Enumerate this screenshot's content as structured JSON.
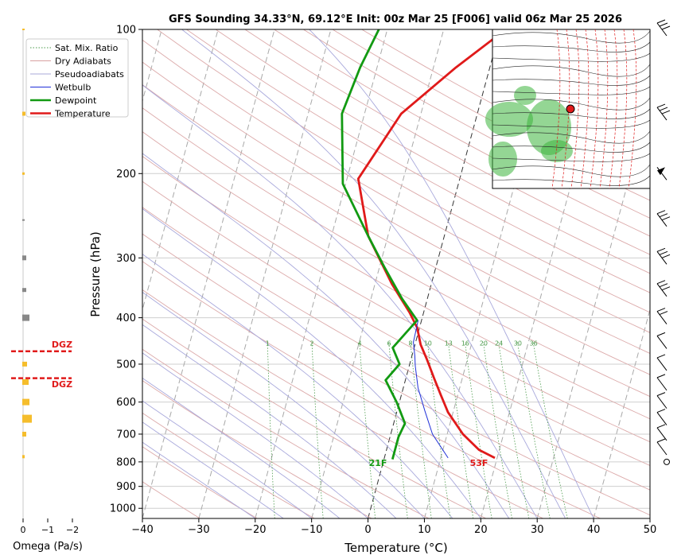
{
  "title": "GFS Sounding 34.33°N, 69.12°E Init: 00z Mar 25 [F006] valid 06z Mar 25 2026",
  "chart_data": {
    "type": "line",
    "title": "GFS Sounding 34.33°N, 69.12°E Init: 00z Mar 25 [F006] valid 06z Mar 25 2026",
    "xlabel": "Temperature (°C)",
    "ylabel": "Pressure (hPa)",
    "xlim": [
      -40,
      50
    ],
    "ylim": [
      1050,
      100
    ],
    "y_scale": "log",
    "x_ticks": [
      "−40",
      "−30",
      "−20",
      "−10",
      "0",
      "10",
      "20",
      "30",
      "40",
      "50"
    ],
    "x_tick_values": [
      -40,
      -30,
      -20,
      -10,
      0,
      10,
      20,
      30,
      40,
      50
    ],
    "y_ticks": [
      100,
      200,
      300,
      400,
      500,
      600,
      700,
      800,
      900,
      1000
    ],
    "grid": true,
    "legend_placement": "top-left",
    "legend": [
      {
        "name": "Sat. Mix. Ratio",
        "color": "#4a9a4a",
        "style": "dotted"
      },
      {
        "name": "Dry Adiabats",
        "color": "#d8a0a0",
        "style": "solid"
      },
      {
        "name": "Pseudoadiabats",
        "color": "#a8a8d8",
        "style": "solid"
      },
      {
        "name": "Wetbulb",
        "color": "#1f2fd8",
        "style": "solid"
      },
      {
        "name": "Dewpoint",
        "color": "#129a12",
        "style": "solid"
      },
      {
        "name": "Temperature",
        "color": "#e01a1a",
        "style": "solid"
      }
    ],
    "series": [
      {
        "name": "Temperature",
        "color": "#e01a1a",
        "points": [
          [
            19.6,
            785
          ],
          [
            16.4,
            755
          ],
          [
            12.8,
            700
          ],
          [
            9.1,
            630
          ],
          [
            7.0,
            580
          ],
          [
            5.0,
            535
          ],
          [
            2.9,
            490
          ],
          [
            1.0,
            455
          ],
          [
            -0.4,
            420
          ],
          [
            -2.5,
            390
          ],
          [
            -7.0,
            340
          ],
          [
            -13.5,
            270
          ],
          [
            -18.0,
            205
          ],
          [
            -13.5,
            150
          ],
          [
            -6.0,
            120
          ],
          [
            1.0,
            100
          ]
        ]
      },
      {
        "name": "Dewpoint",
        "color": "#129a12",
        "points": [
          [
            1.5,
            790
          ],
          [
            1.5,
            710
          ],
          [
            2.0,
            665
          ],
          [
            -0.5,
            600
          ],
          [
            -3.5,
            540
          ],
          [
            -1.8,
            500
          ],
          [
            -3.8,
            462
          ],
          [
            -0.8,
            405
          ],
          [
            -4.5,
            365
          ],
          [
            -9.0,
            315
          ],
          [
            -13.5,
            270
          ],
          [
            -20.5,
            210
          ],
          [
            -24.0,
            150
          ],
          [
            -23.0,
            120
          ],
          [
            -21.5,
            100
          ]
        ]
      },
      {
        "name": "Wetbulb",
        "color": "#1f2fd8",
        "points": [
          [
            11.3,
            785
          ],
          [
            7.4,
            700
          ],
          [
            4.9,
            625
          ],
          [
            2.6,
            560
          ],
          [
            1.1,
            505
          ],
          [
            0.5,
            480
          ],
          [
            -0.4,
            450
          ],
          [
            -0.6,
            405
          ]
        ]
      }
    ],
    "mixing_ratio_labels": [
      "1",
      "2",
      "4",
      "6",
      "8",
      "10",
      "13",
      "16",
      "20",
      "24",
      "30",
      "36"
    ],
    "surface_labels": {
      "temperature": "53F",
      "dewpoint": "21F"
    },
    "omega": {
      "label": "Omega (Pa/s)",
      "ticks": [
        "0",
        "−1",
        "−2"
      ],
      "dgz_label": "DGZ",
      "dgz_layer_hpa": [
        535,
        470
      ]
    }
  }
}
